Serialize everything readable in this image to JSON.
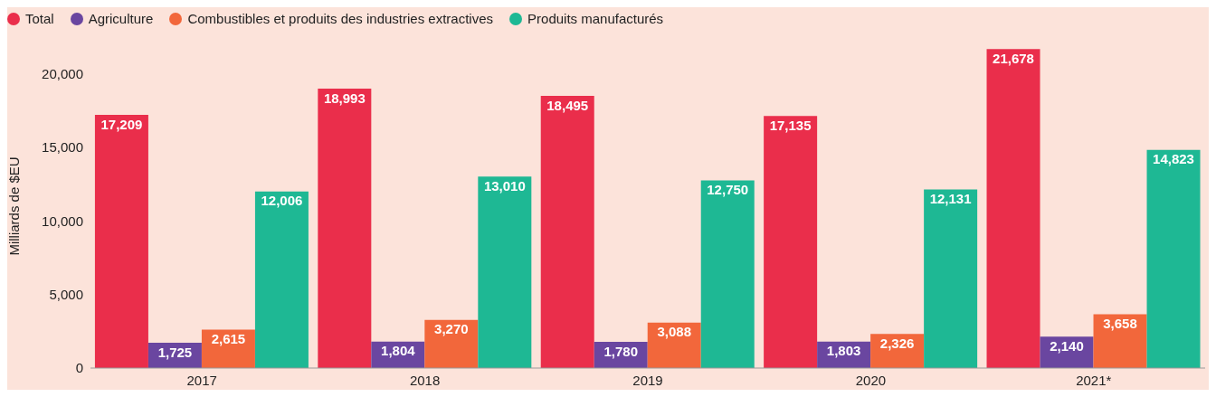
{
  "chart_data": {
    "type": "bar",
    "ylabel": "Milliards de $EU",
    "categories": [
      "2017",
      "2018",
      "2019",
      "2020",
      "2021*"
    ],
    "series": [
      {
        "name": "Total",
        "color": "#ea2e4b",
        "values": [
          17209,
          18993,
          18495,
          17135,
          21678
        ],
        "value_labels": [
          "17,209",
          "18,993",
          "18,495",
          "17,135",
          "21,678"
        ]
      },
      {
        "name": "Agriculture",
        "color": "#6a46a0",
        "values": [
          1725,
          1804,
          1780,
          1803,
          2140
        ],
        "value_labels": [
          "1,725",
          "1,804",
          "1,780",
          "1,803",
          "2,140"
        ]
      },
      {
        "name": "Combustibles et produits des industries extractives",
        "color": "#f2673b",
        "values": [
          2615,
          3270,
          3088,
          2326,
          3658
        ],
        "value_labels": [
          "2,615",
          "3,270",
          "3,088",
          "2,326",
          "3,658"
        ]
      },
      {
        "name": "Produits manufacturés",
        "color": "#1eb894",
        "values": [
          12006,
          13010,
          12750,
          12131,
          14823
        ],
        "value_labels": [
          "12,006",
          "13,010",
          "12,750",
          "12,131",
          "14,823"
        ]
      }
    ],
    "ylim": [
      0,
      22000
    ],
    "yticks": [
      0,
      {
        "value": 5000,
        "label": "5,000"
      },
      {
        "value": 10000,
        "label": "10,000"
      },
      {
        "value": 15000,
        "label": "15,000"
      },
      {
        "value": 20000,
        "label": "20,000"
      }
    ],
    "legend": "top left",
    "grid": false
  }
}
